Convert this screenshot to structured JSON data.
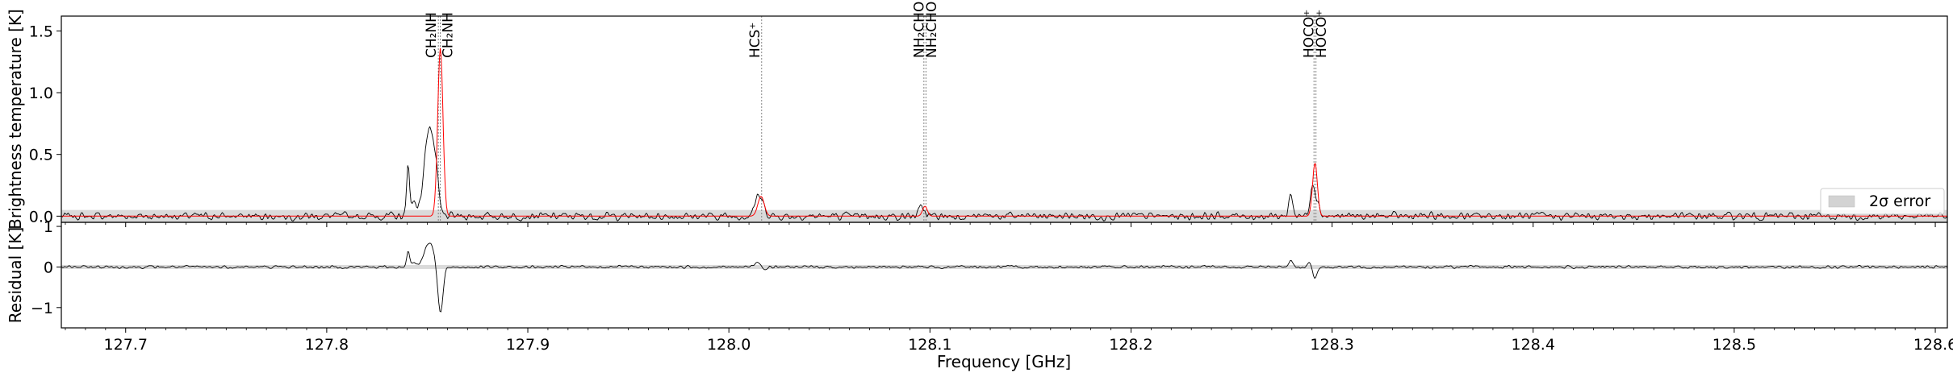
{
  "chart_data": {
    "type": "line",
    "xlabel": "Frequency [GHz]",
    "x_ticks": [
      127.7,
      127.8,
      127.9,
      128.0,
      128.1,
      128.2,
      128.3,
      128.4,
      128.5,
      128.6
    ],
    "x_tick_labels": [
      "127.7",
      "127.8",
      "127.9",
      "128.0",
      "128.1",
      "128.2",
      "128.3",
      "128.4",
      "128.5",
      "128.6"
    ],
    "xlim": [
      127.668,
      128.606
    ],
    "grid": false,
    "panels": [
      {
        "name": "spectrum",
        "ylabel": "Brightness temperature [K]",
        "ylim": [
          -0.05,
          1.62
        ],
        "y_ticks": [
          0.0,
          0.5,
          1.0,
          1.5
        ],
        "y_tick_labels": [
          "0.0",
          "0.5",
          "1.0",
          "1.5"
        ],
        "error_band": {
          "label": "2σ error",
          "low": -0.05,
          "high": 0.05,
          "color": "#d3d3d3"
        },
        "legend_position": "lower-right",
        "series": [
          {
            "color": "#000000",
            "features": [
              {
                "x": 127.8405,
                "height": 0.44,
                "width": 0.0007
              },
              {
                "x": 127.8435,
                "height": 0.12,
                "width": 0.0012
              },
              {
                "x": 127.851,
                "height": 0.73,
                "width": 0.0024
              },
              {
                "x": 127.8545,
                "height": 0.18,
                "width": 0.0012
              },
              {
                "x": 128.015,
                "height": 0.16,
                "width": 0.0022
              },
              {
                "x": 128.096,
                "height": 0.07,
                "width": 0.0014
              },
              {
                "x": 128.2795,
                "height": 0.18,
                "width": 0.001
              },
              {
                "x": 128.2905,
                "height": 0.27,
                "width": 0.0014
              },
              {
                "x": 128.2935,
                "height": 0.06,
                "width": 0.001
              }
            ],
            "noise_sigma": 0.022
          },
          {
            "color": "#ff0000",
            "features": [
              {
                "x": 127.8565,
                "height": 1.36,
                "width": 0.0013
              },
              {
                "x": 128.016,
                "height": 0.16,
                "width": 0.0016
              },
              {
                "x": 128.0975,
                "height": 0.08,
                "width": 0.0012
              },
              {
                "x": 128.2915,
                "height": 0.43,
                "width": 0.0012
              }
            ]
          }
        ],
        "line_annotations": [
          {
            "x": 127.8555,
            "label": "CH₂NH"
          },
          {
            "x": 127.8565,
            "label": "CH₂NH"
          },
          {
            "x": 128.0163,
            "label": "HCS⁺"
          },
          {
            "x": 128.097,
            "label": "NH₂CHO"
          },
          {
            "x": 128.098,
            "label": "NH₂CHO"
          },
          {
            "x": 128.291,
            "label": "HOCO⁺"
          },
          {
            "x": 128.292,
            "label": "HOCO⁺"
          }
        ]
      },
      {
        "name": "residual",
        "ylabel": "Residual [K]",
        "ylim": [
          -1.5,
          1.1
        ],
        "y_ticks": [
          -1,
          0,
          1
        ],
        "y_tick_labels": [
          "−1",
          "0",
          "1"
        ],
        "error_band": {
          "low": -0.05,
          "high": 0.05,
          "color": "#d3d3d3"
        },
        "series": [
          {
            "color": "#000000",
            "features": [
              {
                "x": 127.8405,
                "height": 0.42,
                "width": 0.0007
              },
              {
                "x": 127.8435,
                "height": 0.12,
                "width": 0.0012
              },
              {
                "x": 127.851,
                "height": 0.62,
                "width": 0.0024
              },
              {
                "x": 127.8565,
                "height": -1.18,
                "width": 0.0013
              },
              {
                "x": 128.015,
                "height": 0.14,
                "width": 0.002
              },
              {
                "x": 128.0175,
                "height": -0.12,
                "width": 0.0012
              },
              {
                "x": 128.2795,
                "height": 0.18,
                "width": 0.001
              },
              {
                "x": 128.289,
                "height": 0.14,
                "width": 0.001
              },
              {
                "x": 128.2915,
                "height": -0.28,
                "width": 0.0012
              }
            ],
            "noise_sigma": 0.025
          }
        ]
      }
    ]
  }
}
